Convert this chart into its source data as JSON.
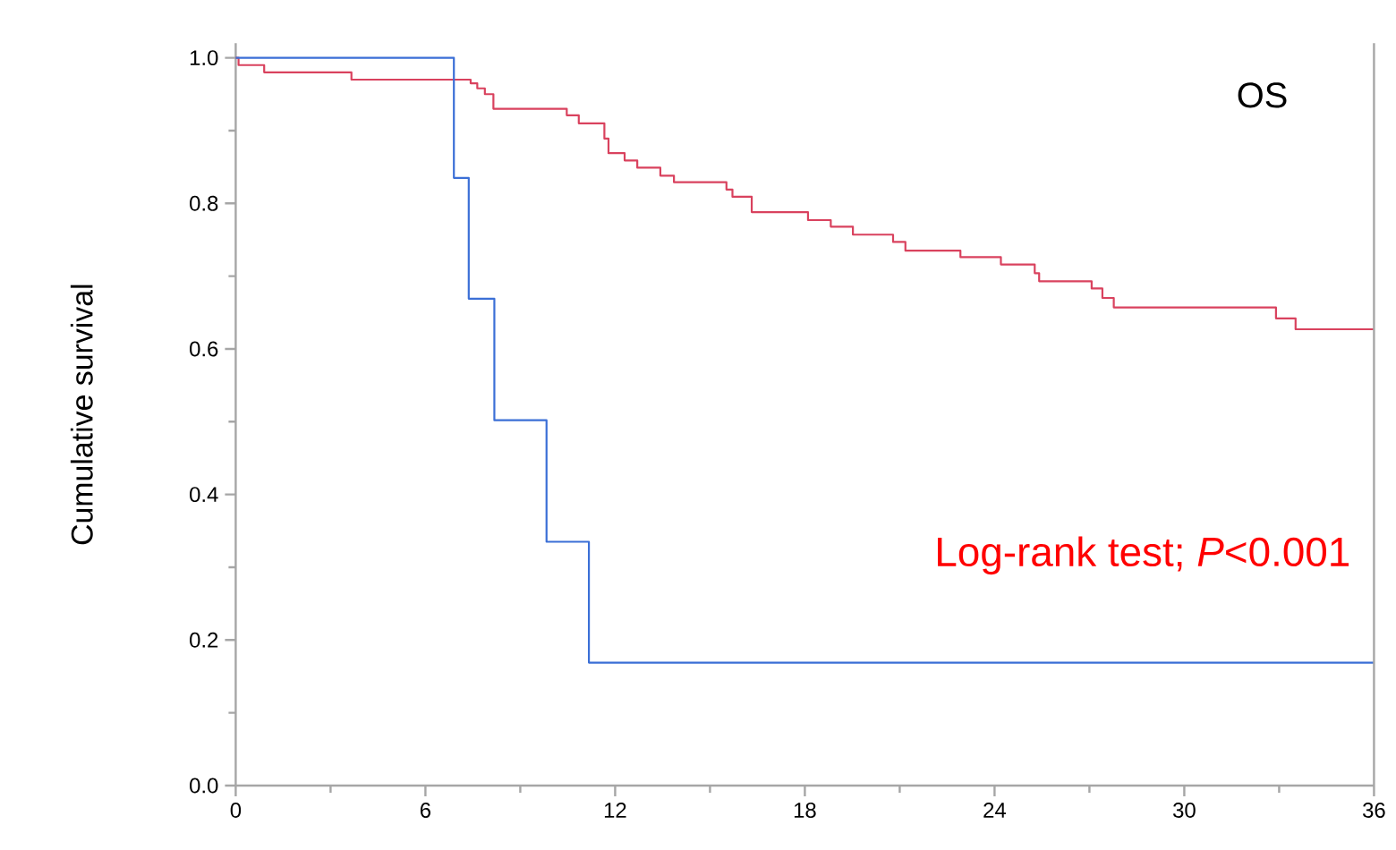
{
  "chart_data": {
    "type": "step",
    "ylabel": "Cumulative survival",
    "annotations": [
      "OS",
      "Log-rank test; *P*<0.001"
    ],
    "series": [
      {
        "color": "#d9425e",
        "x": [
          0,
          0.09,
          0.9,
          3.66,
          7.43,
          7.64,
          7.88,
          8.15,
          10.47,
          10.85,
          11.66,
          11.79,
          12.3,
          12.7,
          13.43,
          13.86,
          15.52,
          15.71,
          16.32,
          18.1,
          18.82,
          19.52,
          20.79,
          21.18,
          22.92,
          24.2,
          25.27,
          25.41,
          27.07,
          27.41,
          27.77,
          32.9,
          33.52,
          36
        ],
        "values": [
          1.0,
          0.99,
          0.98,
          0.97,
          0.965,
          0.958,
          0.95,
          0.93,
          0.921,
          0.91,
          0.889,
          0.869,
          0.859,
          0.849,
          0.838,
          0.829,
          0.819,
          0.809,
          0.788,
          0.777,
          0.768,
          0.757,
          0.747,
          0.735,
          0.726,
          0.716,
          0.704,
          0.693,
          0.683,
          0.67,
          0.657,
          0.642,
          0.627,
          0.627
        ]
      },
      {
        "color": "#3b6fd6",
        "x": [
          0,
          6.9,
          7.37,
          8.18,
          9.83,
          11.17,
          36
        ],
        "values": [
          1.0,
          0.835,
          0.669,
          0.502,
          0.335,
          0.169,
          0.169
        ]
      }
    ],
    "xlim": [
      0,
      36
    ],
    "xticks": [
      0,
      6,
      12,
      18,
      24,
      30,
      36
    ],
    "ylim": [
      0,
      1.02
    ],
    "yticks": [
      {
        "value": 0,
        "label": "0.0"
      },
      {
        "value": 0.2,
        "label": "0.2"
      },
      {
        "value": 0.4,
        "label": "0.4"
      },
      {
        "value": 0.6,
        "label": "0.6"
      },
      {
        "value": 0.8,
        "label": "0.8"
      },
      {
        "value": 1.0,
        "label": "1.0"
      }
    ],
    "grid": false
  }
}
